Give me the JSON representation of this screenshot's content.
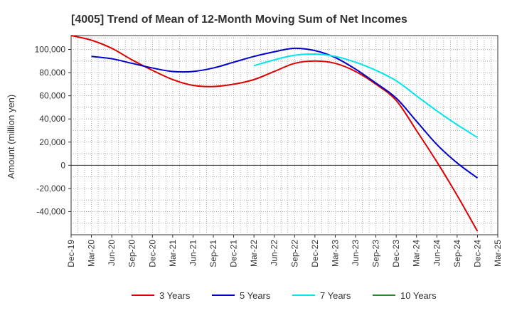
{
  "chart_data": {
    "type": "line",
    "title": "[4005]  Trend of Mean of 12-Month Moving Sum of Net Incomes",
    "xlabel": "",
    "ylabel": "Amount (million yen)",
    "ylim": [
      -60000,
      112000
    ],
    "yticks": [
      100000,
      80000,
      60000,
      40000,
      20000,
      0,
      -20000,
      -40000
    ],
    "ytick_labels": [
      "100,000",
      "80,000",
      "60,000",
      "40,000",
      "20,000",
      "0",
      "-20,000",
      "-40,000"
    ],
    "x_range_months": [
      0,
      63
    ],
    "xtick_labels": [
      "Dec-19",
      "Mar-20",
      "Jun-20",
      "Sep-20",
      "Dec-20",
      "Mar-21",
      "Jun-21",
      "Sep-21",
      "Dec-21",
      "Mar-22",
      "Jun-22",
      "Sep-22",
      "Dec-22",
      "Mar-23",
      "Jun-23",
      "Sep-23",
      "Dec-23",
      "Mar-24",
      "Jun-24",
      "Sep-24",
      "Dec-24",
      "Mar-25"
    ],
    "grid": true,
    "legend_position": "bottom",
    "series": [
      {
        "name": "3 Years",
        "color": "#dd0000",
        "x": [
          0,
          3,
          6,
          9,
          12,
          15,
          18,
          21,
          24,
          27,
          30,
          33,
          36,
          39,
          42,
          45,
          48,
          51,
          54,
          57,
          60
        ],
        "values": [
          112000,
          108000,
          101000,
          91000,
          82000,
          74000,
          69000,
          68000,
          70000,
          74000,
          81000,
          88000,
          90000,
          88000,
          81000,
          70000,
          56000,
          30000,
          3000,
          -26000,
          -57000
        ]
      },
      {
        "name": "5 Years",
        "color": "#0000cc",
        "x": [
          3,
          6,
          9,
          12,
          15,
          18,
          21,
          24,
          27,
          30,
          33,
          36,
          39,
          42,
          45,
          48,
          51,
          54,
          57,
          60
        ],
        "values": [
          94000,
          92000,
          88000,
          84000,
          81000,
          81000,
          84000,
          89000,
          94000,
          98000,
          101000,
          99000,
          93000,
          83000,
          71000,
          58000,
          38000,
          18000,
          2000,
          -11000
        ]
      },
      {
        "name": "7 Years",
        "color": "#00e5ee",
        "x": [
          27,
          30,
          33,
          36,
          39,
          42,
          45,
          48,
          51,
          54,
          57,
          60
        ],
        "values": [
          86000,
          91000,
          95000,
          96000,
          94000,
          89000,
          82000,
          73000,
          60000,
          47000,
          35000,
          24000
        ]
      },
      {
        "name": "10 Years",
        "color": "#228b22",
        "x": [],
        "values": []
      }
    ]
  }
}
